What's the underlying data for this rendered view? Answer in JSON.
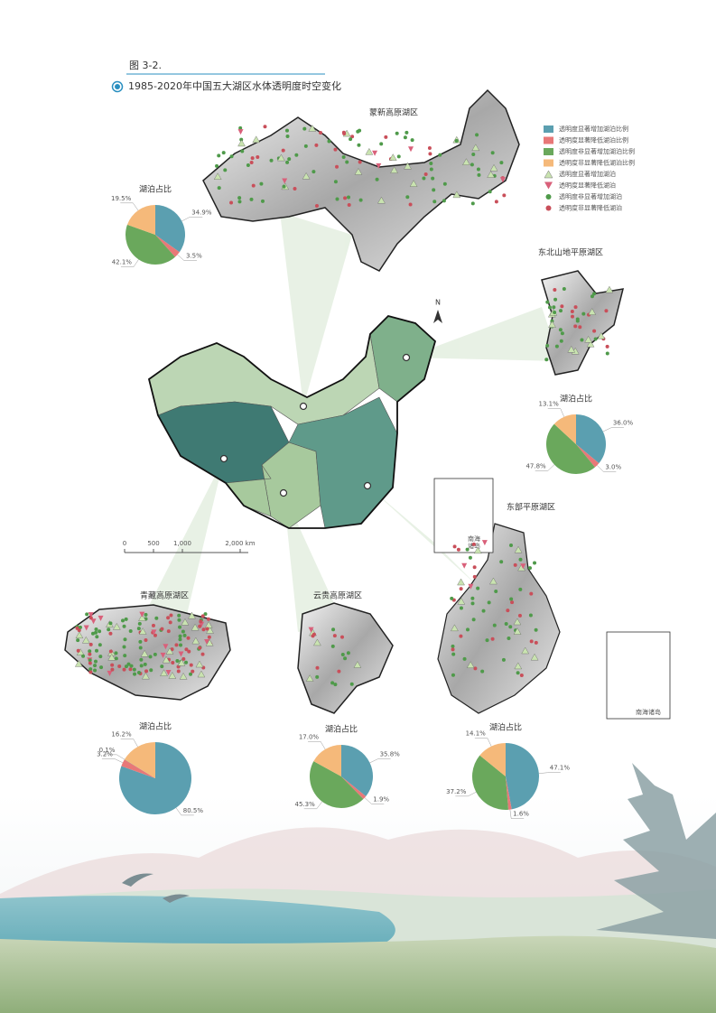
{
  "header": {
    "figure": "图 3-2.",
    "title": "1985-2020年中国五大湖区水体透明度时空变化"
  },
  "legend": [
    {
      "label": "透明度显著增加湖泊比例",
      "color": "#5b9fb0",
      "shape": "square"
    },
    {
      "label": "透明度显著降低湖泊比例",
      "color": "#e87878",
      "shape": "square"
    },
    {
      "label": "透明度非显著增加湖泊比例",
      "color": "#6aa85c",
      "shape": "square"
    },
    {
      "label": "透明度非显著降低湖泊比例",
      "color": "#f5b97a",
      "shape": "square"
    },
    {
      "label": "透明度显著增加湖泊",
      "color": "#c9e3b0",
      "shape": "triangle-up"
    },
    {
      "label": "透明度显著降低湖泊",
      "color": "#d9607a",
      "shape": "triangle-down"
    },
    {
      "label": "透明度非显著增加湖泊",
      "color": "#4f9a4a",
      "shape": "circle"
    },
    {
      "label": "透明度非显著降低湖泊",
      "color": "#c94f5a",
      "shape": "circle"
    }
  ],
  "map": {
    "north": "N",
    "scale": [
      "0",
      "500",
      "1,000",
      "2,000 km"
    ],
    "inset_small": [
      "南海",
      "诸岛"
    ],
    "inset_large": "南海诸岛"
  },
  "regions": [
    {
      "name": "蒙新高原湖区",
      "pie": {
        "type": "pie",
        "title": "湖泊占比",
        "values": [
          34.9,
          3.5,
          42.1,
          19.5
        ],
        "value_labels": [
          "34.9%",
          "3.5%",
          "42.1%",
          "19.5%"
        ]
      }
    },
    {
      "name": "东北山地平原湖区",
      "pie": {
        "type": "pie",
        "title": "湖泊占比",
        "values": [
          36.0,
          3.0,
          47.8,
          13.1
        ],
        "value_labels": [
          "36.0%",
          "3.0%",
          "47.8%",
          "13.1%"
        ]
      }
    },
    {
      "name": "青藏高原湖区",
      "pie": {
        "type": "pie",
        "title": "湖泊占比",
        "values": [
          80.5,
          3.2,
          0.1,
          16.2
        ],
        "value_labels": [
          "80.5%",
          "3.2%",
          "0.1%",
          "16.2%"
        ]
      }
    },
    {
      "name": "云贵高原湖区",
      "pie": {
        "type": "pie",
        "title": "湖泊占比",
        "values": [
          35.8,
          1.9,
          45.3,
          17.0
        ],
        "value_labels": [
          "35.8%",
          "1.9%",
          "45.3%",
          "17.0%"
        ]
      }
    },
    {
      "name": "东部平原湖区",
      "pie": {
        "type": "pie",
        "title": "湖泊占比",
        "values": [
          47.1,
          1.6,
          37.2,
          14.1
        ],
        "value_labels": [
          "47.1%",
          "1.6%",
          "37.2%",
          "14.1%"
        ]
      }
    }
  ]
}
